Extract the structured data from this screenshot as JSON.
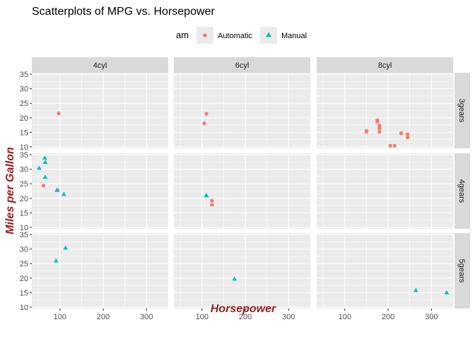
{
  "chart_data": {
    "type": "scatter",
    "title": "Scatterplots of MPG vs. Horsepower",
    "xlabel": "Horsepower",
    "ylabel": "Miles per Gallon",
    "xlim": [
      35,
      350
    ],
    "ylim": [
      9.5,
      35.5
    ],
    "x_ticks": [
      100,
      200,
      300
    ],
    "y_ticks": [
      10,
      15,
      20,
      25,
      30,
      35
    ],
    "grid": true,
    "legend": {
      "title": "am",
      "position": "top",
      "entries": [
        {
          "label": "Automatic",
          "shape": "circle",
          "color": "#f8766d"
        },
        {
          "label": "Manual",
          "shape": "triangle",
          "color": "#00bfc4"
        }
      ]
    },
    "facet_columns": [
      "4cyl",
      "6cyl",
      "8cyl"
    ],
    "facet_rows": [
      "3gears",
      "4gears",
      "5gears"
    ],
    "series": [
      {
        "name": "Automatic",
        "points": [
          {
            "col": 0,
            "row": 0,
            "x": 97,
            "y": 21.5
          },
          {
            "col": 1,
            "row": 0,
            "x": 110,
            "y": 21.4
          },
          {
            "col": 1,
            "row": 0,
            "x": 105,
            "y": 18.1
          },
          {
            "col": 2,
            "row": 0,
            "x": 175,
            "y": 18.7
          },
          {
            "col": 2,
            "row": 0,
            "x": 175,
            "y": 19.2
          },
          {
            "col": 2,
            "row": 0,
            "x": 180,
            "y": 16.4
          },
          {
            "col": 2,
            "row": 0,
            "x": 180,
            "y": 17.3
          },
          {
            "col": 2,
            "row": 0,
            "x": 180,
            "y": 15.2
          },
          {
            "col": 2,
            "row": 0,
            "x": 205,
            "y": 10.4
          },
          {
            "col": 2,
            "row": 0,
            "x": 215,
            "y": 10.4
          },
          {
            "col": 2,
            "row": 0,
            "x": 230,
            "y": 14.7
          },
          {
            "col": 2,
            "row": 0,
            "x": 150,
            "y": 15.5
          },
          {
            "col": 2,
            "row": 0,
            "x": 150,
            "y": 15.2
          },
          {
            "col": 2,
            "row": 0,
            "x": 245,
            "y": 13.3
          },
          {
            "col": 2,
            "row": 0,
            "x": 245,
            "y": 14.3
          },
          {
            "col": 0,
            "row": 1,
            "x": 62,
            "y": 24.4
          },
          {
            "col": 0,
            "row": 1,
            "x": 95,
            "y": 22.8
          },
          {
            "col": 1,
            "row": 1,
            "x": 123,
            "y": 19.2
          },
          {
            "col": 1,
            "row": 1,
            "x": 123,
            "y": 17.8
          }
        ]
      },
      {
        "name": "Manual",
        "points": [
          {
            "col": 0,
            "row": 1,
            "x": 93,
            "y": 22.8
          },
          {
            "col": 0,
            "row": 1,
            "x": 66,
            "y": 32.4
          },
          {
            "col": 0,
            "row": 1,
            "x": 52,
            "y": 30.4
          },
          {
            "col": 0,
            "row": 1,
            "x": 65,
            "y": 33.9
          },
          {
            "col": 0,
            "row": 1,
            "x": 66,
            "y": 27.3
          },
          {
            "col": 0,
            "row": 1,
            "x": 109,
            "y": 21.4
          },
          {
            "col": 1,
            "row": 1,
            "x": 110,
            "y": 21.0
          },
          {
            "col": 1,
            "row": 1,
            "x": 110,
            "y": 21.0
          },
          {
            "col": 0,
            "row": 2,
            "x": 91,
            "y": 26.0
          },
          {
            "col": 0,
            "row": 2,
            "x": 113,
            "y": 30.4
          },
          {
            "col": 1,
            "row": 2,
            "x": 175,
            "y": 19.7
          },
          {
            "col": 2,
            "row": 2,
            "x": 264,
            "y": 15.8
          },
          {
            "col": 2,
            "row": 2,
            "x": 335,
            "y": 15.0
          }
        ]
      }
    ]
  }
}
